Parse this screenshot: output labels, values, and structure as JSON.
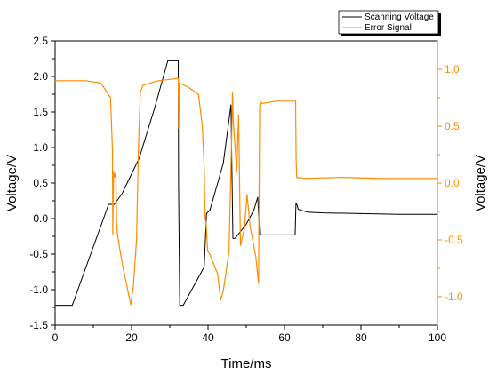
{
  "chart_data": {
    "type": "line",
    "xlabel": "Time/ms",
    "ylabel_left": "Voltage/V",
    "ylabel_right": "Voltage/V",
    "xlim": [
      0,
      100
    ],
    "ylim_left": [
      -1.5,
      2.5
    ],
    "ylim_right": [
      -1.25,
      1.25
    ],
    "x_ticks": [
      "0",
      "20",
      "40",
      "60",
      "80",
      "100"
    ],
    "y_ticks_left": [
      "-1.5",
      "-1.0",
      "-0.5",
      "0.0",
      "0.5",
      "1.0",
      "1.5",
      "2.0",
      "2.5"
    ],
    "y_ticks_right": [
      "-1.0",
      "-0.5",
      "0.0",
      "0.5",
      "1.0"
    ],
    "legend_position": "top-right",
    "grid": false,
    "colors": {
      "scanning": "#000000",
      "error": "#ff8c00"
    },
    "series": [
      {
        "name": "Scanning Voltage",
        "axis": "left",
        "color": "#000000",
        "x": [
          0,
          4.5,
          14,
          15.5,
          17.5,
          22,
          26,
          29.5,
          32.2,
          32.3,
          32.6,
          33.5,
          39,
          39.6,
          40.5,
          44,
          46,
          46.5,
          47,
          47.2,
          50,
          52,
          53,
          53.5,
          62.8,
          63,
          63.2,
          63.6,
          66,
          70,
          80,
          90,
          100
        ],
        "y": [
          -1.22,
          -1.22,
          0.2,
          0.2,
          0.35,
          0.85,
          1.55,
          2.22,
          2.22,
          0.45,
          -1.22,
          -1.22,
          -0.68,
          0.07,
          0.12,
          0.78,
          1.6,
          -0.28,
          -0.28,
          -0.27,
          -0.08,
          0.12,
          0.3,
          -0.23,
          -0.23,
          0.22,
          0.2,
          0.13,
          0.09,
          0.08,
          0.07,
          0.06,
          0.06
        ]
      },
      {
        "name": "Error Signal",
        "axis": "right",
        "color": "#ff8c00",
        "x": [
          0,
          8,
          12,
          14.5,
          15.0,
          15.1,
          15.3,
          15.6,
          15.9,
          16.1,
          16.3,
          17.5,
          19.8,
          20.5,
          21.3,
          21.8,
          22.3,
          23,
          27,
          32.2,
          32.35,
          32.5,
          35,
          37.5,
          38.5,
          39.0,
          39.2,
          39.5,
          39.9,
          40.4,
          42.5,
          43.3,
          44,
          45.5,
          46.2,
          46.4,
          46.6,
          47.5,
          48.0,
          48.5,
          49.5,
          50.2,
          51.0,
          52.5,
          53.2,
          53.5,
          53.8,
          54,
          58,
          62.9,
          63.05,
          63.2,
          65,
          75,
          85,
          100
        ],
        "y": [
          0.9,
          0.9,
          0.88,
          0.75,
          0.3,
          -0.45,
          0.1,
          0.05,
          0.1,
          -0.35,
          -0.45,
          -0.7,
          -1.07,
          -0.9,
          -0.5,
          0.3,
          0.8,
          0.86,
          0.9,
          0.92,
          0.48,
          0.88,
          0.84,
          0.78,
          0.5,
          0.15,
          -0.3,
          -0.35,
          -0.6,
          -0.62,
          -0.8,
          -1.03,
          -0.95,
          -0.6,
          0.42,
          0.8,
          0.55,
          0.1,
          0.6,
          -0.55,
          -0.4,
          -0.1,
          -0.38,
          -0.65,
          -0.88,
          0.68,
          0.72,
          0.7,
          0.72,
          0.72,
          0.2,
          0.05,
          0.04,
          0.05,
          0.04,
          0.04
        ]
      }
    ]
  }
}
